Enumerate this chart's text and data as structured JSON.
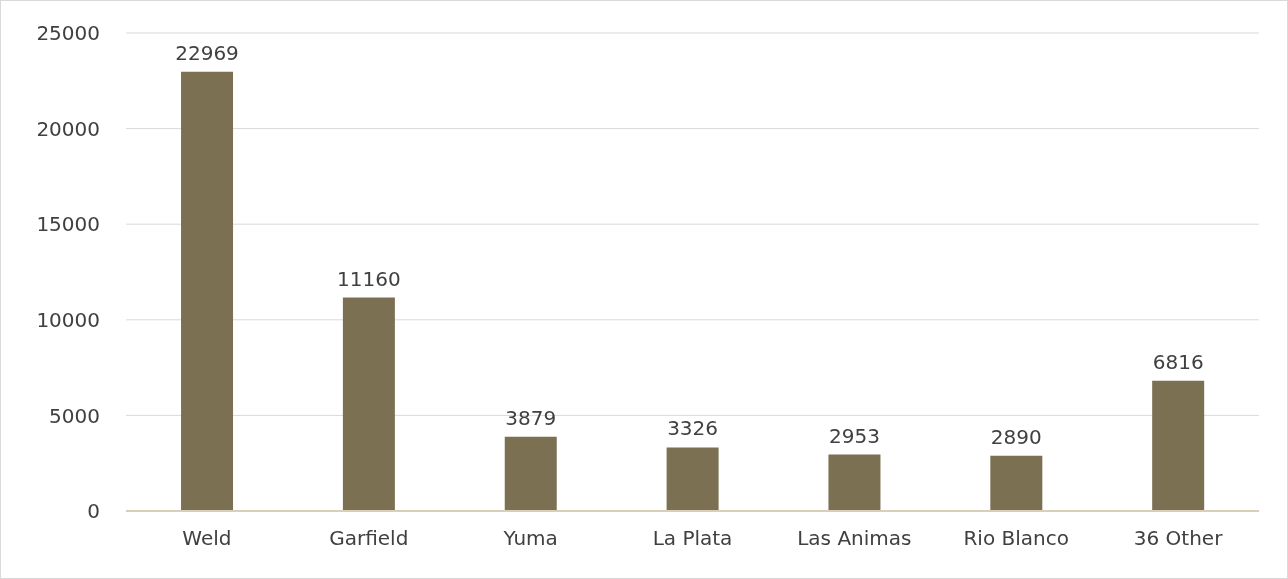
{
  "chart_data": {
    "type": "bar",
    "categories": [
      "Weld",
      "Garfield",
      "Yuma",
      "La Plata",
      "Las Animas",
      "Rio Blanco",
      "36 Other"
    ],
    "values": [
      22969,
      11160,
      3879,
      3326,
      2953,
      2890,
      6816
    ],
    "color": "#7b7052",
    "ylim": [
      0,
      25000
    ],
    "yticks": [
      0,
      5000,
      10000,
      15000,
      20000,
      25000
    ],
    "grid": "y",
    "data_labels": true
  }
}
